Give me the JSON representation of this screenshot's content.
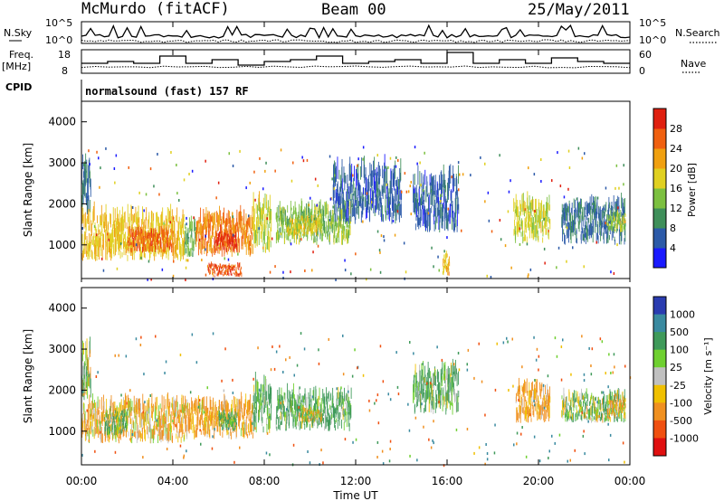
{
  "header": {
    "station": "McMurdo (fitACF)",
    "beam": "Beam 00",
    "date": "25/May/2011"
  },
  "top_panels": {
    "nsky_label": "N.Sky",
    "nsearch_label": "N.Search",
    "sky_ticks": [
      "10^5",
      "10^0"
    ],
    "search_ticks": [
      "10^5",
      "10^0"
    ],
    "freq_label_1": "Freq.",
    "freq_label_2": "[MHz]",
    "freq_ticks": [
      "18",
      "8"
    ],
    "nave_label": "Nave",
    "nave_ticks": [
      "60",
      "0"
    ],
    "cpid_label": "CPID",
    "mode_text": "normalsound (fast) 157 RF"
  },
  "power_panel": {
    "ylabel": "Slant Range [km]",
    "yticks": [
      "4000",
      "3000",
      "2000",
      "1000"
    ],
    "colorbar_label": "Power [dB]",
    "colorbar_ticks": [
      "28",
      "24",
      "20",
      "16",
      "12",
      "8",
      "4"
    ],
    "colorbar_colors": [
      "#1a1aff",
      "#2c5aa8",
      "#3f8f5a",
      "#7cc040",
      "#e0d020",
      "#f0a010",
      "#f06010",
      "#e02010"
    ]
  },
  "velocity_panel": {
    "ylabel": "Slant Range [km]",
    "yticks": [
      "4000",
      "3000",
      "2000",
      "1000"
    ],
    "colorbar_label": "Velocity [m s⁻¹]",
    "colorbar_ticks": [
      "1000",
      "500",
      "100",
      "25",
      "-25",
      "-100",
      "-500",
      "-1000"
    ],
    "colorbar_colors": [
      "#2a3cb0",
      "#3a8aa0",
      "#3f9a5a",
      "#6fd030",
      "#c0c0c0",
      "#f0c000",
      "#f09020",
      "#f05010",
      "#e01010"
    ]
  },
  "x_axis": {
    "ticks": [
      "00:00",
      "04:00",
      "08:00",
      "12:00",
      "16:00",
      "20:00",
      "00:00"
    ],
    "label": "Time UT"
  },
  "chart_data": [
    {
      "type": "heatmap",
      "title": "Power",
      "xlabel": "Time UT",
      "ylabel": "Slant Range [km]",
      "xlim": [
        0,
        24
      ],
      "ylim": [
        180,
        4500
      ],
      "clim": [
        0,
        30
      ],
      "colorbar": "Power [dB]",
      "regions": [
        {
          "t0": 0.0,
          "t1": 0.4,
          "r0": 1700,
          "r1": 2900,
          "value": 7
        },
        {
          "t0": 0.0,
          "t1": 4.5,
          "r0": 600,
          "r1": 1600,
          "value": 18
        },
        {
          "t0": 2.0,
          "t1": 4.0,
          "r0": 800,
          "r1": 1300,
          "value": 24
        },
        {
          "t0": 4.5,
          "t1": 5.0,
          "r0": 700,
          "r1": 1400,
          "value": 12
        },
        {
          "t0": 5.0,
          "t1": 7.5,
          "r0": 700,
          "r1": 1600,
          "value": 22
        },
        {
          "t0": 5.8,
          "t1": 6.8,
          "r0": 800,
          "r1": 1300,
          "value": 27
        },
        {
          "t0": 7.5,
          "t1": 8.3,
          "r0": 800,
          "r1": 1900,
          "value": 16
        },
        {
          "t0": 8.5,
          "t1": 11.8,
          "r0": 1000,
          "r1": 1800,
          "value": 13
        },
        {
          "t0": 9.0,
          "t1": 10.5,
          "r0": 1200,
          "r1": 1600,
          "value": 17
        },
        {
          "t0": 11.0,
          "t1": 14.0,
          "r0": 1500,
          "r1": 2700,
          "value": 6
        },
        {
          "t0": 5.5,
          "t1": 7.0,
          "r0": 220,
          "r1": 480,
          "value": 25
        },
        {
          "t0": 14.5,
          "t1": 16.5,
          "r0": 1300,
          "r1": 2500,
          "value": 6
        },
        {
          "t0": 15.8,
          "t1": 16.1,
          "r0": 250,
          "r1": 700,
          "value": 20
        },
        {
          "t0": 18.9,
          "t1": 20.5,
          "r0": 1000,
          "r1": 1900,
          "value": 16
        },
        {
          "t0": 21.0,
          "t1": 23.8,
          "r0": 1000,
          "r1": 1900,
          "value": 7
        },
        {
          "t0": 23.0,
          "t1": 23.8,
          "r0": 1300,
          "r1": 1700,
          "value": 14
        }
      ]
    },
    {
      "type": "heatmap",
      "title": "Velocity",
      "xlabel": "Time UT",
      "ylabel": "Slant Range [km]",
      "xlim": [
        0,
        24
      ],
      "ylim": [
        180,
        4500
      ],
      "clim": [
        -1000,
        1000
      ],
      "colorbar": "Velocity [m s⁻¹]",
      "regions": [
        {
          "t0": 0.0,
          "t1": 0.4,
          "r0": 1700,
          "r1": 2900,
          "value": 0
        },
        {
          "t0": 0.0,
          "t1": 4.5,
          "r0": 700,
          "r1": 1600,
          "value": -100
        },
        {
          "t0": 1.0,
          "t1": 2.0,
          "r0": 900,
          "r1": 1400,
          "value": 100
        },
        {
          "t0": 4.5,
          "t1": 7.5,
          "r0": 800,
          "r1": 1600,
          "value": -150
        },
        {
          "t0": 6.0,
          "t1": 6.8,
          "r0": 1000,
          "r1": 1400,
          "value": 200
        },
        {
          "t0": 7.5,
          "t1": 8.3,
          "r0": 900,
          "r1": 2000,
          "value": 120
        },
        {
          "t0": 8.5,
          "t1": 11.8,
          "r0": 1000,
          "r1": 1800,
          "value": 150
        },
        {
          "t0": 9.5,
          "t1": 10.5,
          "r0": 1200,
          "r1": 1500,
          "value": -60
        },
        {
          "t0": 14.5,
          "t1": 16.5,
          "r0": 1400,
          "r1": 2400,
          "value": 120
        },
        {
          "t0": 19.0,
          "t1": 20.5,
          "r0": 1200,
          "r1": 2000,
          "value": -200
        },
        {
          "t0": 21.0,
          "t1": 23.8,
          "r0": 1200,
          "r1": 1800,
          "value": 80
        },
        {
          "t0": 23.0,
          "t1": 23.8,
          "r0": 1300,
          "r1": 1700,
          "value": -120
        }
      ]
    }
  ]
}
